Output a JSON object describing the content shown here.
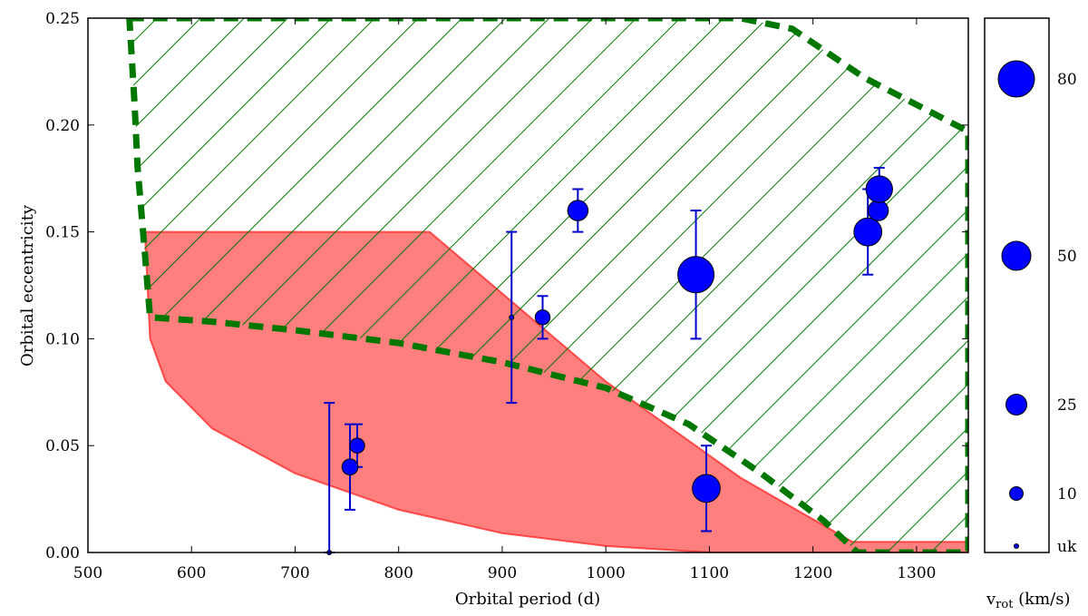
{
  "chart_data": {
    "type": "scatter",
    "xlabel": "Orbital period (d)",
    "ylabel": "Orbital eccentricity",
    "xlim": [
      500,
      1350
    ],
    "ylim": [
      0,
      0.25
    ],
    "xticks": [
      500,
      600,
      700,
      800,
      900,
      1000,
      1100,
      1200,
      1300
    ],
    "xtick_labels": [
      "500",
      "600",
      "700",
      "800",
      "900",
      "1000",
      "1100",
      "1200",
      "1300"
    ],
    "yticks": [
      0.0,
      0.05,
      0.1,
      0.15,
      0.2,
      0.25
    ],
    "ytick_labels": [
      "0.00",
      "0.05",
      "0.10",
      "0.15",
      "0.20",
      "0.25"
    ],
    "marker_color": "#0000ff",
    "errorbar_color": "#0000cc",
    "points": [
      {
        "x": 733,
        "y": 0.0,
        "yerr": [
          0.0,
          0.07
        ],
        "vrot": 0
      },
      {
        "x": 753,
        "y": 0.04,
        "yerr": [
          0.02,
          0.06
        ],
        "vrot": 10
      },
      {
        "x": 760,
        "y": 0.05,
        "yerr": [
          0.04,
          0.06
        ],
        "vrot": 8
      },
      {
        "x": 909,
        "y": 0.11,
        "yerr": [
          0.07,
          0.15
        ],
        "vrot": 0
      },
      {
        "x": 939,
        "y": 0.11,
        "yerr": [
          0.1,
          0.12
        ],
        "vrot": 8
      },
      {
        "x": 973,
        "y": 0.16,
        "yerr": [
          0.15,
          0.17
        ],
        "vrot": 20
      },
      {
        "x": 1087,
        "y": 0.13,
        "yerr": [
          0.1,
          0.16
        ],
        "vrot": 85
      },
      {
        "x": 1097,
        "y": 0.03,
        "yerr": [
          0.01,
          0.05
        ],
        "vrot": 45
      },
      {
        "x": 1253,
        "y": 0.15,
        "yerr": [
          0.13,
          0.17
        ],
        "vrot": 45
      },
      {
        "x": 1263,
        "y": 0.16,
        "yerr": null,
        "vrot": 20
      },
      {
        "x": 1264,
        "y": 0.17,
        "yerr": [
          0.16,
          0.18
        ],
        "vrot": 40
      }
    ],
    "red_region": {
      "color": "#ff0000",
      "opacity": 0.5,
      "polygon": [
        [
          555,
          0.15
        ],
        [
          830,
          0.15
        ],
        [
          1000,
          0.08
        ],
        [
          1130,
          0.035
        ],
        [
          1238,
          0.005
        ],
        [
          1275,
          0.005
        ],
        [
          1285,
          0.005
        ],
        [
          1350,
          0.005
        ],
        [
          1350,
          0.0
        ],
        [
          1100,
          0.0
        ],
        [
          1000,
          0.003
        ],
        [
          900,
          0.009
        ],
        [
          800,
          0.02
        ],
        [
          700,
          0.037
        ],
        [
          620,
          0.058
        ],
        [
          575,
          0.08
        ],
        [
          560,
          0.1
        ]
      ]
    },
    "green_region": {
      "color": "#007700",
      "border": [
        [
          540,
          0.25
        ],
        [
          1130,
          0.25
        ],
        [
          1180,
          0.245
        ],
        [
          1250,
          0.222
        ],
        [
          1350,
          0.197
        ],
        [
          1350,
          0.0
        ],
        [
          1243,
          0.0
        ],
        [
          1210,
          0.015
        ],
        [
          1150,
          0.037
        ],
        [
          1080,
          0.06
        ],
        [
          1000,
          0.077
        ],
        [
          900,
          0.089
        ],
        [
          800,
          0.098
        ],
        [
          700,
          0.104
        ],
        [
          620,
          0.108
        ],
        [
          560,
          0.11
        ],
        [
          555,
          0.14
        ],
        [
          548,
          0.18
        ],
        [
          545,
          0.21
        ]
      ]
    },
    "size_legend": {
      "title": "v",
      "title_subscript": "rot",
      "title_unit": " (km/s)",
      "entries": [
        {
          "label": "80",
          "vrot": 80
        },
        {
          "label": "50",
          "vrot": 50
        },
        {
          "label": "25",
          "vrot": 25
        },
        {
          "label": "10",
          "vrot": 10
        },
        {
          "label": "uk",
          "vrot": 0
        }
      ]
    }
  }
}
